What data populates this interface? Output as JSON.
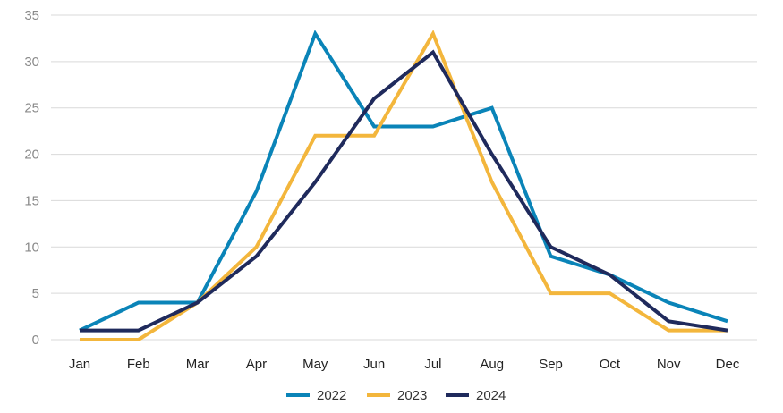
{
  "chart_data": {
    "type": "line",
    "categories": [
      "Jan",
      "Feb",
      "Mar",
      "Apr",
      "May",
      "Jun",
      "Jul",
      "Aug",
      "Sep",
      "Oct",
      "Nov",
      "Dec"
    ],
    "series": [
      {
        "name": "2022",
        "color": "#0a84b8",
        "values": [
          1,
          4,
          4,
          16,
          33,
          23,
          23,
          25,
          9,
          7,
          4,
          2
        ]
      },
      {
        "name": "2023",
        "color": "#f3b63c",
        "values": [
          0,
          0,
          4,
          10,
          22,
          22,
          33,
          17,
          5,
          5,
          1,
          1
        ]
      },
      {
        "name": "2024",
        "color": "#1f2a5c",
        "values": [
          1,
          1,
          4,
          9,
          17,
          26,
          31,
          20,
          10,
          7,
          2,
          1
        ]
      }
    ],
    "yticks": [
      "0",
      "5",
      "10",
      "15",
      "20",
      "25",
      "30",
      "35"
    ],
    "ylim": [
      0,
      35
    ],
    "grid": true,
    "legend_position": "bottom-center"
  }
}
